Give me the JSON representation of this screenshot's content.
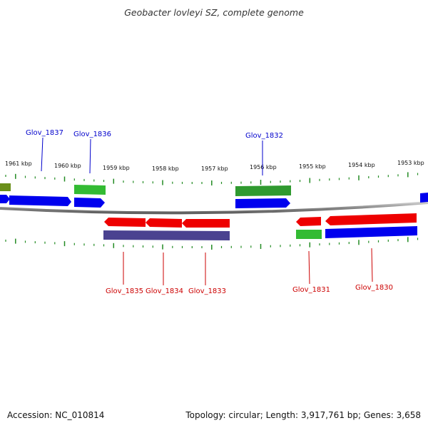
{
  "title": "Geobacter lovleyi SZ, complete genome",
  "footer": {
    "accession": "Accession: NC_010814",
    "stats": "Topology: circular; Length: 3,917,761 bp; Genes: 3,658"
  },
  "colors": {
    "forward_cds": "#0000ee",
    "reverse_cds": "#ee0000",
    "forward_other": "#33bb33",
    "reverse_other": "#4a4290",
    "partial_feature": "#6a8f1a",
    "backbone": "#808080",
    "ticks": "#228b22",
    "forward_label": "#0000cc",
    "reverse_label": "#cc0000"
  },
  "kbp_labels": [
    "1961 kbp",
    "1960 kbp",
    "1959 kbp",
    "1958 kbp",
    "1957 kbp",
    "1956 kbp",
    "1955 kbp",
    "1954 kbp",
    "1953 kbp"
  ],
  "gene_labels": {
    "forward": [
      "Glov_1837",
      "Glov_1836",
      "Glov_1832"
    ],
    "reverse": [
      "Glov_1835",
      "Glov_1834",
      "Glov_1833",
      "Glov_1831",
      "Glov_1830"
    ]
  }
}
